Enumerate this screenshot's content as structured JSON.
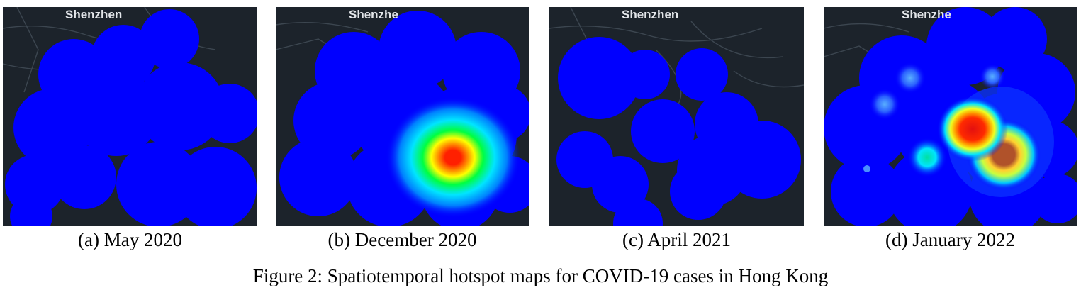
{
  "figure_caption": "Figure 2: Spatiotemporal hotspot maps for COVID-19 cases in Hong Kong",
  "panels": [
    {
      "caption": "(a) May 2020",
      "map_label": "Shenzhen",
      "peak_intensity": "none"
    },
    {
      "caption": "(b) December 2020",
      "map_label": "Shenzhe",
      "peak_intensity": "high"
    },
    {
      "caption": "(c) April 2021",
      "map_label": "Shenzhen",
      "peak_intensity": "none"
    },
    {
      "caption": "(d) January 2022",
      "map_label": "Shenzhe",
      "peak_intensity": "high"
    }
  ],
  "colors": {
    "base_map": "#1c232b",
    "road_lines": "#3c4650",
    "heat_low": "#0000ff",
    "heat_mid": "#00e5ff",
    "heat_high": "#ff0000"
  }
}
